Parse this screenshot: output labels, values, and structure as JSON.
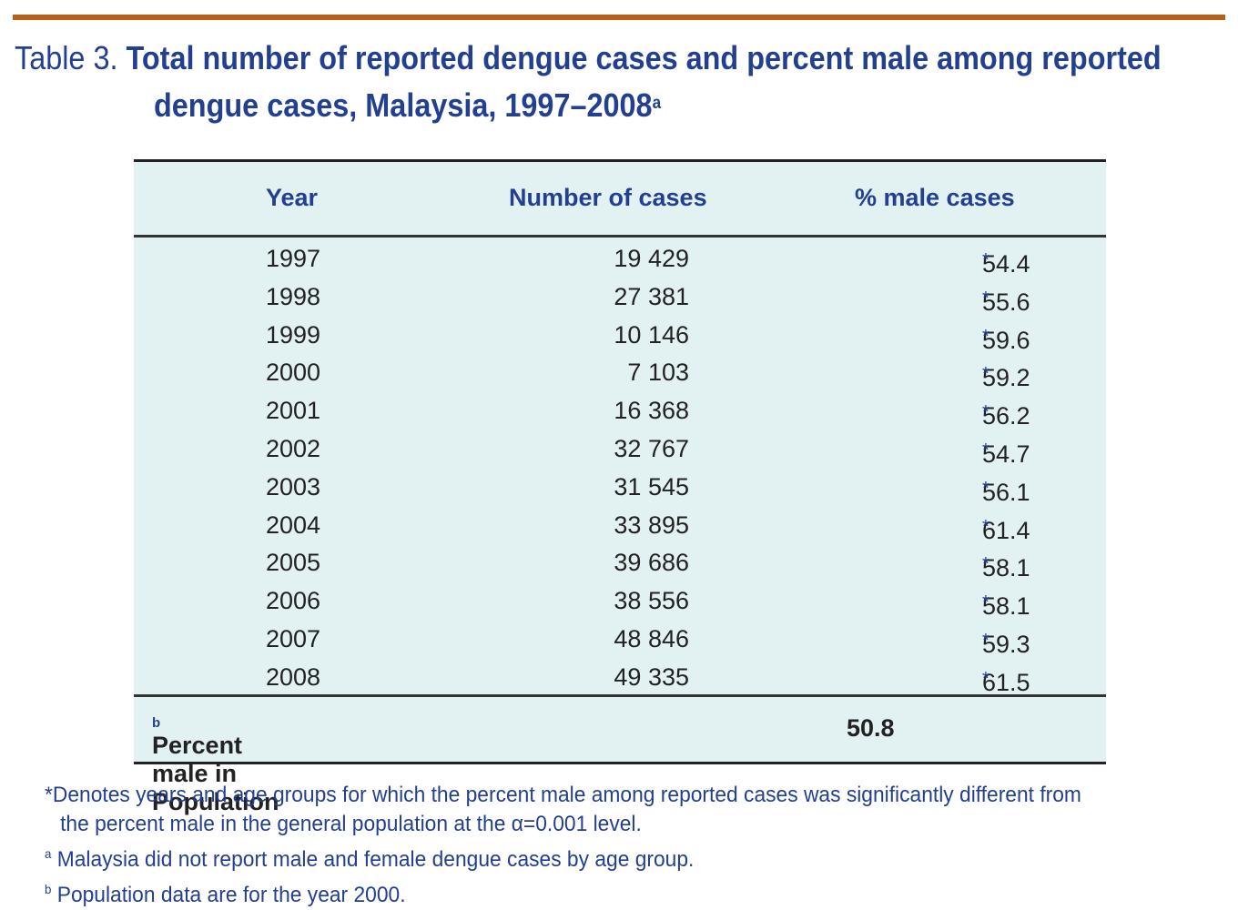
{
  "title": {
    "prefix": "Table 3.",
    "main_line1": "Total number of reported dengue cases and percent male among reported",
    "main_line2": "dengue cases, Malaysia, 1997–2008",
    "superscript": "a"
  },
  "table": {
    "headers": [
      "Year",
      "Number of cases",
      "% male cases"
    ],
    "rows": [
      {
        "year": "1997",
        "cases": "19 429",
        "pct": "54.4",
        "mark": "*"
      },
      {
        "year": "1998",
        "cases": "27 381",
        "pct": "55.6",
        "mark": "*"
      },
      {
        "year": "1999",
        "cases": "10 146",
        "pct": "59.6",
        "mark": "*"
      },
      {
        "year": "2000",
        "cases": "7 103",
        "pct": "59.2",
        "mark": "*"
      },
      {
        "year": "2001",
        "cases": "16 368",
        "pct": "56.2",
        "mark": "*"
      },
      {
        "year": "2002",
        "cases": "32 767",
        "pct": "54.7",
        "mark": "*"
      },
      {
        "year": "2003",
        "cases": "31 545",
        "pct": "56.1",
        "mark": "*"
      },
      {
        "year": "2004",
        "cases": "33 895",
        "pct": "61.4",
        "mark": "*"
      },
      {
        "year": "2005",
        "cases": "39 686",
        "pct": "58.1",
        "mark": "*"
      },
      {
        "year": "2006",
        "cases": "38 556",
        "pct": "58.1",
        "mark": "*"
      },
      {
        "year": "2007",
        "cases": "48 846",
        "pct": "59.3",
        "mark": "*"
      },
      {
        "year": "2008",
        "cases": "49 335",
        "pct": "61.5",
        "mark": "*"
      }
    ],
    "footer": {
      "label": "Percent male in Population",
      "superscript": "b",
      "value": "50.8"
    }
  },
  "notes": {
    "asterisk_line1": "*Denotes years and age groups for which the percent male among reported cases was significantly different from",
    "asterisk_line2": "the percent male in the general population at the α=0.001 level.",
    "note_a_marker": "a",
    "note_a": " Malaysia did not report male and female dengue cases by age group.",
    "note_b_marker": "b",
    "note_b": " Population data are for the year 2000."
  },
  "colors": {
    "accent_bar": "#b5611a",
    "title_blue": "#233f8f",
    "table_bg": "#e2f2f2"
  }
}
